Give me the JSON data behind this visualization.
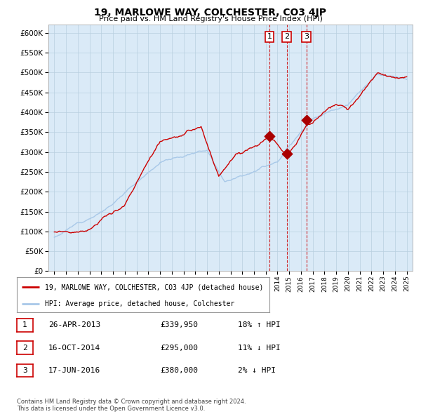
{
  "title": "19, MARLOWE WAY, COLCHESTER, CO3 4JP",
  "subtitle": "Price paid vs. HM Land Registry's House Price Index (HPI)",
  "hpi_color": "#a8c8e8",
  "price_color": "#cc0000",
  "marker_color": "#aa0000",
  "bg_color": "#daeaf7",
  "grid_color": "#b8cfe0",
  "ylim": [
    0,
    620000
  ],
  "yticks": [
    0,
    50000,
    100000,
    150000,
    200000,
    250000,
    300000,
    350000,
    400000,
    450000,
    500000,
    550000,
    600000
  ],
  "sale_year_floats": [
    2013.32,
    2014.79,
    2016.46
  ],
  "sale_prices": [
    339950,
    295000,
    380000
  ],
  "sale_labels": [
    "1",
    "2",
    "3"
  ],
  "legend_red": "19, MARLOWE WAY, COLCHESTER, CO3 4JP (detached house)",
  "legend_blue": "HPI: Average price, detached house, Colchester",
  "table_rows": [
    [
      "1",
      "26-APR-2013",
      "£339,950",
      "18% ↑ HPI"
    ],
    [
      "2",
      "16-OCT-2014",
      "£295,000",
      "11% ↓ HPI"
    ],
    [
      "3",
      "17-JUN-2016",
      "£380,000",
      "2% ↓ HPI"
    ]
  ],
  "footnote": "Contains HM Land Registry data © Crown copyright and database right 2024.\nThis data is licensed under the Open Government Licence v3.0."
}
